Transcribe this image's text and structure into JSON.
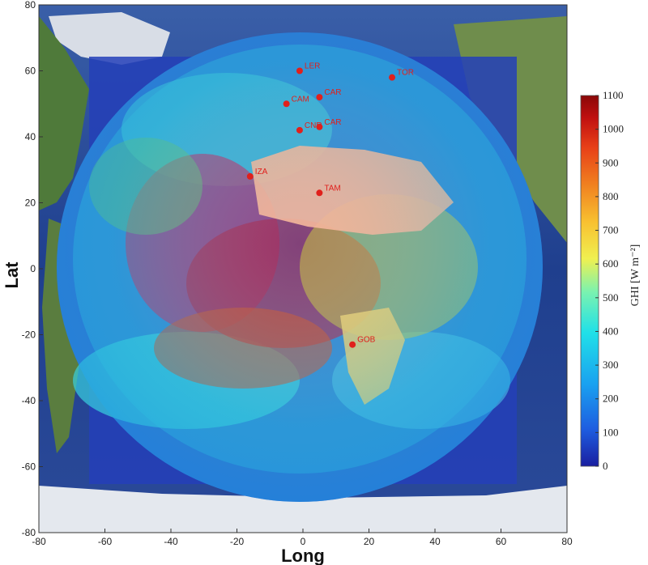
{
  "map": {
    "x_axis_title": "Long",
    "y_axis_title": "Lat",
    "x_ticks": [
      "-80",
      "-60",
      "-40",
      "-20",
      "0",
      "20",
      "40",
      "60",
      "80"
    ],
    "y_ticks": [
      "80",
      "60",
      "40",
      "20",
      "0",
      "-20",
      "-40",
      "-60",
      "-80"
    ],
    "x_range": [
      -80,
      80
    ],
    "y_range": [
      -80,
      80
    ],
    "stations": [
      {
        "label": "LER",
        "lon": -1,
        "lat": 60
      },
      {
        "label": "CAM",
        "lon": -5,
        "lat": 50
      },
      {
        "label": "CAR",
        "lon": 5,
        "lat": 52
      },
      {
        "label": "TOR",
        "lon": 27,
        "lat": 58
      },
      {
        "label": "CNR",
        "lon": -1,
        "lat": 42
      },
      {
        "label": "CAR",
        "lon": 5,
        "lat": 43
      },
      {
        "label": "IZA",
        "lon": -16,
        "lat": 28
      },
      {
        "label": "TAM",
        "lon": 5,
        "lat": 23
      },
      {
        "label": "GOB",
        "lon": 15,
        "lat": -23
      }
    ],
    "station_color": "#e0201c"
  },
  "colorbar": {
    "title": "GHI [W m⁻²]",
    "ticks": [
      "1100",
      "1000",
      "900",
      "800",
      "700",
      "600",
      "500",
      "400",
      "300",
      "200",
      "100",
      "0"
    ],
    "range": [
      0,
      1100
    ],
    "colors": [
      "#1a1fa0",
      "#1e5de0",
      "#1aa0f0",
      "#20e0e8",
      "#7af2b0",
      "#f0f050",
      "#f8c030",
      "#f08020",
      "#e84018",
      "#c01010",
      "#8a0808"
    ]
  }
}
